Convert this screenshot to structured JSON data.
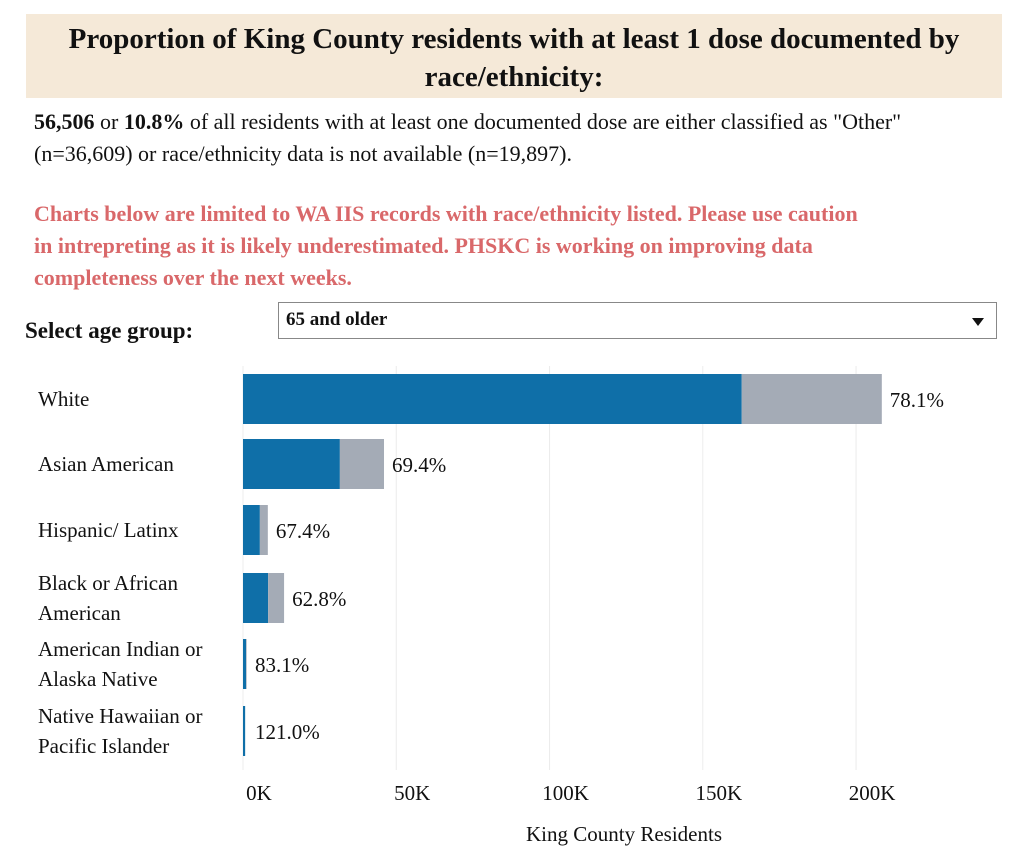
{
  "header": {
    "title": "Proportion of King County residents with at least 1 dose documented by race/ethnicity:"
  },
  "summary": {
    "count": "56,506",
    "connector": "or",
    "percent": "10.8%",
    "rest": "of all residents with at least one documented dose are either classified as \"Other\" (n=36,609) or race/ethnicity data is not available (n=19,897)."
  },
  "warning": [
    "Charts below are limited to WA IIS records with race/ethnicity listed. Please use caution",
    "in intrepreting as it is likely underestimated. PHSKC is working on improving data",
    "completeness over the next weeks."
  ],
  "filter": {
    "label": "Select age group:",
    "selected": "65 and older"
  },
  "chart_data": {
    "type": "bar",
    "orientation": "horizontal",
    "stacked": true,
    "categories": [
      "White",
      "Asian American",
      "Hispanic/ Latinx",
      "Black or African American",
      "American Indian or Alaska Native",
      "Native Hawaiian or Pacific Islander"
    ],
    "series": [
      {
        "color": "#0f6fa8",
        "values": [
          162700,
          31600,
          5500,
          8200,
          1000,
          700
        ]
      },
      {
        "color": "#a4abb6",
        "values": [
          45700,
          14400,
          2600,
          5200,
          200,
          0
        ]
      }
    ],
    "annotations": [
      "78.1%",
      "69.4%",
      "67.4%",
      "62.8%",
      "83.1%",
      "121.0%"
    ],
    "xlim": [
      0,
      245000
    ],
    "xticks": [
      {
        "value": 0,
        "label": "0K"
      },
      {
        "value": 50000,
        "label": "50K"
      },
      {
        "value": 100000,
        "label": "100K"
      },
      {
        "value": 150000,
        "label": "150K"
      },
      {
        "value": 200000,
        "label": "200K"
      }
    ],
    "xlabel": "King County Residents",
    "grid": true
  }
}
